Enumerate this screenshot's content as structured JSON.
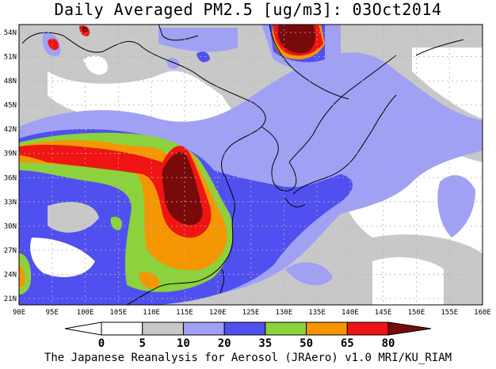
{
  "title": "Daily Averaged PM2.5 [ug/m3]: 03Oct2014",
  "footer": "The Japanese Reanalysis for Aerosol (JRAero) v1.0 MRI/KU_RIAM",
  "lon_labels": [
    "90E",
    "95E",
    "100E",
    "105E",
    "110E",
    "115E",
    "120E",
    "125E",
    "130E",
    "135E",
    "140E",
    "145E",
    "150E",
    "155E",
    "160E"
  ],
  "lat_labels": [
    "54N",
    "51N",
    "48N",
    "45N",
    "42N",
    "39N",
    "36N",
    "33N",
    "30N",
    "27N",
    "24N",
    "21N"
  ],
  "colorbar": {
    "labels": [
      "0",
      "5",
      "10",
      "20",
      "35",
      "50",
      "65",
      "80"
    ],
    "colors": [
      "#ffffff",
      "#ffffff",
      "#c8c8c8",
      "#a0a0f5",
      "#5050f0",
      "#8cd23c",
      "#f59600",
      "#f01414",
      "#780a0a"
    ]
  },
  "map": {
    "lon_range": [
      90,
      160
    ],
    "lat_range": [
      20,
      55
    ],
    "grid": true
  }
}
